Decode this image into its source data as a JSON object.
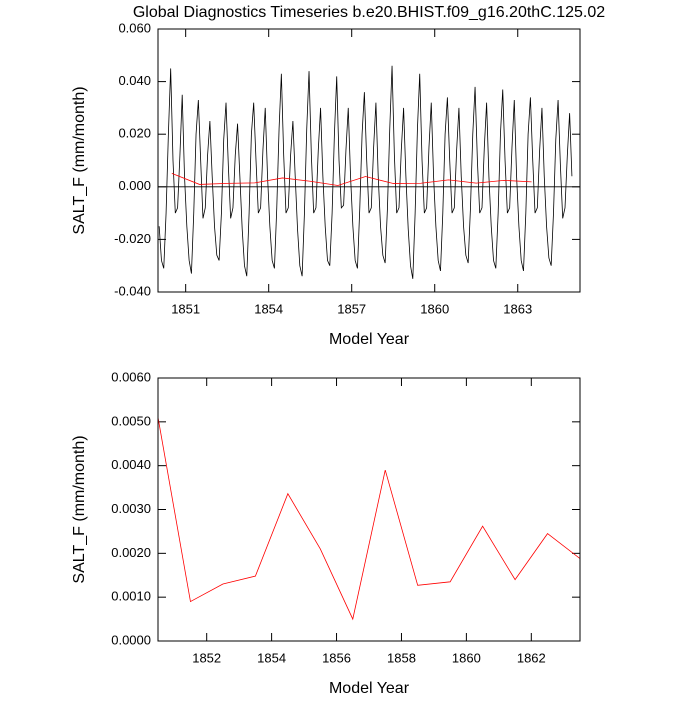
{
  "chart_data": [
    {
      "type": "line",
      "title": "Global Diagnostics Timeseries b.e20.BHIST.f09_g16.20thC.125.02",
      "x_label": "Model Year",
      "y_label": "SALT_F (mm/month)",
      "xlim": [
        1850,
        1865.25
      ],
      "ylim": [
        -0.04,
        0.06
      ],
      "xticks": [
        1851,
        1854,
        1857,
        1860,
        1863
      ],
      "yticks": [
        {
          "value": 0.06,
          "label": "0.060"
        },
        {
          "value": 0.04,
          "label": "0.040"
        },
        {
          "value": 0.02,
          "label": "0.020"
        },
        {
          "value": 0,
          "label": "0.000"
        },
        {
          "value": -0.02,
          "label": "-0.020"
        },
        {
          "value": -0.04,
          "label": "-0.040"
        }
      ],
      "hline": 0,
      "series": [
        {
          "color": "#000000",
          "x": [
            1850.042,
            1850.125,
            1850.208,
            1850.292,
            1850.375,
            1850.458,
            1850.542,
            1850.625,
            1850.708,
            1850.792,
            1850.875,
            1850.958,
            1851.042,
            1851.125,
            1851.208,
            1851.292,
            1851.375,
            1851.458,
            1851.542,
            1851.625,
            1851.708,
            1851.792,
            1851.875,
            1851.958,
            1852.042,
            1852.125,
            1852.208,
            1852.292,
            1852.375,
            1852.458,
            1852.542,
            1852.625,
            1852.708,
            1852.792,
            1852.875,
            1852.958,
            1853.042,
            1853.125,
            1853.208,
            1853.292,
            1853.375,
            1853.458,
            1853.542,
            1853.625,
            1853.708,
            1853.792,
            1853.875,
            1853.958,
            1854.042,
            1854.125,
            1854.208,
            1854.292,
            1854.375,
            1854.458,
            1854.542,
            1854.625,
            1854.708,
            1854.792,
            1854.875,
            1854.958,
            1855.042,
            1855.125,
            1855.208,
            1855.292,
            1855.375,
            1855.458,
            1855.542,
            1855.625,
            1855.708,
            1855.792,
            1855.875,
            1855.958,
            1856.042,
            1856.125,
            1856.208,
            1856.292,
            1856.375,
            1856.458,
            1856.542,
            1856.625,
            1856.708,
            1856.792,
            1856.875,
            1856.958,
            1857.042,
            1857.125,
            1857.208,
            1857.292,
            1857.375,
            1857.458,
            1857.542,
            1857.625,
            1857.708,
            1857.792,
            1857.875,
            1857.958,
            1858.042,
            1858.125,
            1858.208,
            1858.292,
            1858.375,
            1858.458,
            1858.542,
            1858.625,
            1858.708,
            1858.792,
            1858.875,
            1858.958,
            1859.042,
            1859.125,
            1859.208,
            1859.292,
            1859.375,
            1859.458,
            1859.542,
            1859.625,
            1859.708,
            1859.792,
            1859.875,
            1859.958,
            1860.042,
            1860.125,
            1860.208,
            1860.292,
            1860.375,
            1860.458,
            1860.542,
            1860.625,
            1860.708,
            1860.792,
            1860.875,
            1860.958,
            1861.042,
            1861.125,
            1861.208,
            1861.292,
            1861.375,
            1861.458,
            1861.542,
            1861.625,
            1861.708,
            1861.792,
            1861.875,
            1861.958,
            1862.042,
            1862.125,
            1862.208,
            1862.292,
            1862.375,
            1862.458,
            1862.542,
            1862.625,
            1862.708,
            1862.792,
            1862.875,
            1862.958,
            1863.042,
            1863.125,
            1863.208,
            1863.292,
            1863.375,
            1863.458,
            1863.542,
            1863.625,
            1863.708,
            1863.792,
            1863.875,
            1863.958,
            1864.042,
            1864.125,
            1864.208,
            1864.292,
            1864.375,
            1864.458,
            1864.542,
            1864.625,
            1864.708,
            1864.792,
            1864.875,
            1864.958
          ],
          "values": [
            -0.015,
            -0.028,
            -0.031,
            -0.01,
            0.02,
            0.045,
            0.01,
            -0.01,
            -0.008,
            0.012,
            0.035,
            0.004,
            -0.015,
            -0.028,
            -0.033,
            -0.01,
            0.02,
            0.033,
            0.01,
            -0.012,
            -0.008,
            0.012,
            0.025,
            0.004,
            -0.015,
            -0.026,
            -0.028,
            -0.01,
            0.018,
            0.032,
            0.008,
            -0.012,
            -0.008,
            0.012,
            0.024,
            0.004,
            -0.016,
            -0.03,
            -0.034,
            -0.01,
            0.02,
            0.032,
            0.01,
            -0.01,
            -0.008,
            0.014,
            0.03,
            0.004,
            -0.015,
            -0.028,
            -0.031,
            -0.008,
            0.022,
            0.043,
            0.012,
            -0.01,
            -0.008,
            0.012,
            0.025,
            0.004,
            -0.016,
            -0.03,
            -0.034,
            -0.01,
            0.022,
            0.044,
            0.012,
            -0.01,
            -0.008,
            0.014,
            0.03,
            0.004,
            -0.015,
            -0.028,
            -0.03,
            -0.01,
            0.02,
            0.042,
            0.01,
            -0.008,
            -0.007,
            0.014,
            0.03,
            0.004,
            -0.015,
            -0.028,
            -0.031,
            -0.008,
            0.02,
            0.036,
            0.01,
            -0.01,
            -0.008,
            0.015,
            0.032,
            0.004,
            -0.015,
            -0.026,
            -0.029,
            -0.008,
            0.022,
            0.046,
            0.012,
            -0.01,
            -0.008,
            0.014,
            0.03,
            0.004,
            -0.016,
            -0.03,
            -0.035,
            -0.01,
            0.022,
            0.043,
            0.01,
            -0.01,
            -0.008,
            0.015,
            0.032,
            0.004,
            -0.015,
            -0.028,
            -0.032,
            -0.01,
            0.02,
            0.034,
            0.01,
            -0.01,
            -0.008,
            0.014,
            0.03,
            0.004,
            -0.015,
            -0.026,
            -0.029,
            -0.008,
            0.02,
            0.038,
            0.01,
            -0.01,
            -0.008,
            0.015,
            0.032,
            0.004,
            -0.015,
            -0.028,
            -0.031,
            -0.01,
            0.02,
            0.037,
            0.01,
            -0.01,
            -0.008,
            0.015,
            0.033,
            0.004,
            -0.015,
            -0.028,
            -0.032,
            -0.01,
            0.02,
            0.034,
            0.01,
            -0.01,
            -0.008,
            0.014,
            0.03,
            0.004,
            -0.015,
            -0.027,
            -0.03,
            -0.01,
            0.018,
            0.033,
            0.008,
            -0.012,
            -0.008,
            0.012,
            0.028,
            0.004
          ]
        },
        {
          "color": "#ff0000",
          "x": [
            1850.5,
            1851.5,
            1852.5,
            1853.5,
            1854.5,
            1855.5,
            1856.5,
            1857.5,
            1858.5,
            1859.5,
            1860.5,
            1861.5,
            1862.5,
            1863.5
          ],
          "values": [
            0.0051,
            0.0009,
            0.0013,
            0.00148,
            0.00336,
            0.0021,
            0.0005,
            0.0039,
            0.00127,
            0.00135,
            0.00262,
            0.0014,
            0.00245,
            0.00188
          ]
        }
      ]
    },
    {
      "type": "line",
      "x_label": "Model Year",
      "y_label": "SALT_F (mm/month)",
      "xlim": [
        1850.5,
        1863.5
      ],
      "ylim": [
        0,
        0.006
      ],
      "xticks": [
        1852,
        1854,
        1856,
        1858,
        1860,
        1862
      ],
      "yticks": [
        {
          "value": 0.006,
          "label": "0.0060"
        },
        {
          "value": 0.005,
          "label": "0.0050"
        },
        {
          "value": 0.004,
          "label": "0.0040"
        },
        {
          "value": 0.003,
          "label": "0.0030"
        },
        {
          "value": 0.002,
          "label": "0.0020"
        },
        {
          "value": 0.001,
          "label": "0.0010"
        },
        {
          "value": 0,
          "label": "0.0000"
        }
      ],
      "series": [
        {
          "color": "#ff0000",
          "x": [
            1850.5,
            1851.5,
            1852.5,
            1853.5,
            1854.5,
            1855.5,
            1856.5,
            1857.5,
            1858.5,
            1859.5,
            1860.5,
            1861.5,
            1862.5,
            1863.5
          ],
          "values": [
            0.0051,
            0.0009,
            0.0013,
            0.00148,
            0.00336,
            0.0021,
            0.0005,
            0.0039,
            0.00127,
            0.00135,
            0.00262,
            0.0014,
            0.00245,
            0.00188
          ]
        }
      ]
    }
  ]
}
